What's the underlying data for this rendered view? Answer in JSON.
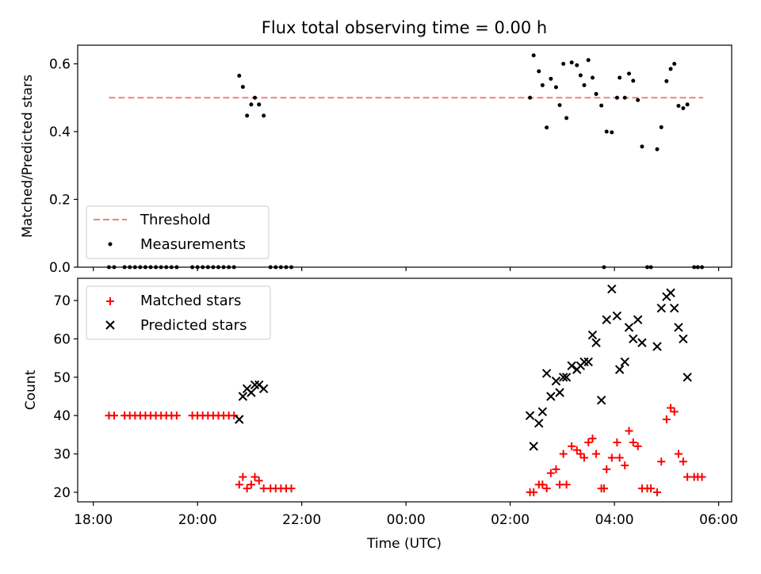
{
  "title": "Flux total observing time = 0.00 h",
  "xlabel": "Time (UTC)",
  "xticks": [
    {
      "hour": 18,
      "label": "18:00"
    },
    {
      "hour": 20,
      "label": "20:00"
    },
    {
      "hour": 22,
      "label": "22:00"
    },
    {
      "hour": 24,
      "label": "00:00"
    },
    {
      "hour": 26,
      "label": "02:00"
    },
    {
      "hour": 28,
      "label": "04:00"
    },
    {
      "hour": 30,
      "label": "06:00"
    }
  ],
  "colors": {
    "threshold": "#f08080",
    "measurements": "#000000",
    "matched": "#ff0000",
    "predicted": "#000000"
  },
  "chart_data": [
    {
      "type": "scatter",
      "ylabel": "Matched/Predicted stars",
      "xlim": [
        17.7,
        30.25
      ],
      "ylim": [
        0,
        0.655
      ],
      "yticks": [
        {
          "value": 0.0,
          "label": "0.0"
        },
        {
          "value": 0.2,
          "label": "0.2"
        },
        {
          "value": 0.4,
          "label": "0.4"
        },
        {
          "value": 0.6,
          "label": "0.6"
        }
      ],
      "legend": {
        "placement": "lower-left",
        "threshold_label": "Threshold",
        "measurements_label": "Measurements"
      },
      "threshold": {
        "value": 0.5,
        "x": [
          18.3,
          29.7
        ]
      },
      "measurements": [
        [
          18.3,
          0
        ],
        [
          18.4,
          0
        ],
        [
          18.6,
          0
        ],
        [
          18.7,
          0
        ],
        [
          18.8,
          0
        ],
        [
          18.9,
          0
        ],
        [
          19.0,
          0
        ],
        [
          19.1,
          0
        ],
        [
          19.2,
          0
        ],
        [
          19.3,
          0
        ],
        [
          19.4,
          0
        ],
        [
          19.5,
          0
        ],
        [
          19.6,
          0
        ],
        [
          19.9,
          0
        ],
        [
          20.0,
          0
        ],
        [
          20.1,
          0
        ],
        [
          20.2,
          0
        ],
        [
          20.3,
          0
        ],
        [
          20.4,
          0
        ],
        [
          20.5,
          0
        ],
        [
          20.6,
          0
        ],
        [
          20.7,
          0
        ],
        [
          20.8,
          0.565
        ],
        [
          20.87,
          0.532
        ],
        [
          20.95,
          0.447
        ],
        [
          21.03,
          0.48
        ],
        [
          21.1,
          0.5
        ],
        [
          21.18,
          0.48
        ],
        [
          21.27,
          0.447
        ],
        [
          21.4,
          0
        ],
        [
          21.5,
          0
        ],
        [
          21.6,
          0
        ],
        [
          21.7,
          0
        ],
        [
          21.8,
          0
        ],
        [
          26.38,
          0.5
        ],
        [
          26.45,
          0.625
        ],
        [
          26.55,
          0.578
        ],
        [
          26.62,
          0.537
        ],
        [
          26.7,
          0.412
        ],
        [
          26.78,
          0.556
        ],
        [
          26.88,
          0.531
        ],
        [
          26.95,
          0.478
        ],
        [
          27.02,
          0.6
        ],
        [
          27.08,
          0.44
        ],
        [
          27.18,
          0.604
        ],
        [
          27.28,
          0.596
        ],
        [
          27.35,
          0.566
        ],
        [
          27.42,
          0.537
        ],
        [
          27.5,
          0.611
        ],
        [
          27.58,
          0.559
        ],
        [
          27.65,
          0.511
        ],
        [
          27.75,
          0.477
        ],
        [
          27.8,
          0
        ],
        [
          27.85,
          0.4
        ],
        [
          27.95,
          0.398
        ],
        [
          28.05,
          0.5
        ],
        [
          28.1,
          0.559
        ],
        [
          28.2,
          0.5
        ],
        [
          28.28,
          0.571
        ],
        [
          28.36,
          0.55
        ],
        [
          28.45,
          0.493
        ],
        [
          28.53,
          0.356
        ],
        [
          28.63,
          0
        ],
        [
          28.7,
          0
        ],
        [
          28.82,
          0.348
        ],
        [
          28.9,
          0.413
        ],
        [
          29.0,
          0.549
        ],
        [
          29.08,
          0.585
        ],
        [
          29.15,
          0.6
        ],
        [
          29.23,
          0.476
        ],
        [
          29.32,
          0.469
        ],
        [
          29.4,
          0.48
        ],
        [
          29.53,
          0
        ],
        [
          29.6,
          0
        ],
        [
          29.68,
          0
        ]
      ]
    },
    {
      "type": "scatter",
      "ylabel": "Count",
      "xlim": [
        17.7,
        30.25
      ],
      "ylim": [
        17.5,
        75.8
      ],
      "yticks": [
        {
          "value": 20,
          "label": "20"
        },
        {
          "value": 30,
          "label": "30"
        },
        {
          "value": 40,
          "label": "40"
        },
        {
          "value": 50,
          "label": "50"
        },
        {
          "value": 60,
          "label": "60"
        },
        {
          "value": 70,
          "label": "70"
        }
      ],
      "legend": {
        "placement": "upper-left",
        "matched_label": "Matched stars",
        "predicted_label": "Predicted stars"
      },
      "series": [
        {
          "name": "Matched stars",
          "marker": "+",
          "points": [
            [
              18.3,
              40
            ],
            [
              18.4,
              40
            ],
            [
              18.6,
              40
            ],
            [
              18.7,
              40
            ],
            [
              18.8,
              40
            ],
            [
              18.9,
              40
            ],
            [
              19.0,
              40
            ],
            [
              19.1,
              40
            ],
            [
              19.2,
              40
            ],
            [
              19.3,
              40
            ],
            [
              19.4,
              40
            ],
            [
              19.5,
              40
            ],
            [
              19.6,
              40
            ],
            [
              19.9,
              40
            ],
            [
              20.0,
              40
            ],
            [
              20.1,
              40
            ],
            [
              20.2,
              40
            ],
            [
              20.3,
              40
            ],
            [
              20.4,
              40
            ],
            [
              20.5,
              40
            ],
            [
              20.6,
              40
            ],
            [
              20.7,
              40
            ],
            [
              20.8,
              22
            ],
            [
              20.87,
              24
            ],
            [
              20.95,
              21
            ],
            [
              21.03,
              22
            ],
            [
              21.1,
              24
            ],
            [
              21.18,
              23
            ],
            [
              21.27,
              21
            ],
            [
              21.4,
              21
            ],
            [
              21.5,
              21
            ],
            [
              21.6,
              21
            ],
            [
              21.7,
              21
            ],
            [
              21.8,
              21
            ],
            [
              26.38,
              20
            ],
            [
              26.45,
              20
            ],
            [
              26.55,
              22
            ],
            [
              26.62,
              22
            ],
            [
              26.7,
              21
            ],
            [
              26.78,
              25
            ],
            [
              26.88,
              26
            ],
            [
              26.95,
              22
            ],
            [
              27.02,
              30
            ],
            [
              27.08,
              22
            ],
            [
              27.18,
              32
            ],
            [
              27.28,
              31
            ],
            [
              27.35,
              30
            ],
            [
              27.42,
              29
            ],
            [
              27.5,
              33
            ],
            [
              27.58,
              34
            ],
            [
              27.65,
              30
            ],
            [
              27.75,
              21
            ],
            [
              27.8,
              21
            ],
            [
              27.85,
              26
            ],
            [
              27.95,
              29
            ],
            [
              28.05,
              33
            ],
            [
              28.1,
              29
            ],
            [
              28.2,
              27
            ],
            [
              28.28,
              36
            ],
            [
              28.36,
              33
            ],
            [
              28.45,
              32
            ],
            [
              28.53,
              21
            ],
            [
              28.63,
              21
            ],
            [
              28.7,
              21
            ],
            [
              28.82,
              20
            ],
            [
              28.9,
              28
            ],
            [
              29.0,
              39
            ],
            [
              29.08,
              42
            ],
            [
              29.15,
              41
            ],
            [
              29.23,
              30
            ],
            [
              29.32,
              28
            ],
            [
              29.4,
              24
            ],
            [
              29.53,
              24
            ],
            [
              29.6,
              24
            ],
            [
              29.68,
              24
            ]
          ]
        },
        {
          "name": "Predicted stars",
          "marker": "x",
          "points": [
            [
              20.8,
              39
            ],
            [
              20.87,
              45
            ],
            [
              20.95,
              47
            ],
            [
              21.03,
              46
            ],
            [
              21.1,
              48
            ],
            [
              21.18,
              48
            ],
            [
              21.27,
              47
            ],
            [
              26.38,
              40
            ],
            [
              26.45,
              32
            ],
            [
              26.55,
              38
            ],
            [
              26.62,
              41
            ],
            [
              26.7,
              51
            ],
            [
              26.78,
              45
            ],
            [
              26.88,
              49
            ],
            [
              26.95,
              46
            ],
            [
              27.02,
              50
            ],
            [
              27.08,
              50
            ],
            [
              27.18,
              53
            ],
            [
              27.28,
              52
            ],
            [
              27.35,
              53
            ],
            [
              27.42,
              54
            ],
            [
              27.5,
              54
            ],
            [
              27.58,
              61
            ],
            [
              27.65,
              59
            ],
            [
              27.75,
              44
            ],
            [
              27.85,
              65
            ],
            [
              27.95,
              73
            ],
            [
              28.05,
              66
            ],
            [
              28.1,
              52
            ],
            [
              28.2,
              54
            ],
            [
              28.28,
              63
            ],
            [
              28.36,
              60
            ],
            [
              28.45,
              65
            ],
            [
              28.53,
              59
            ],
            [
              28.82,
              58
            ],
            [
              28.9,
              68
            ],
            [
              29.0,
              71
            ],
            [
              29.08,
              72
            ],
            [
              29.15,
              68
            ],
            [
              29.23,
              63
            ],
            [
              29.32,
              60
            ],
            [
              29.4,
              50
            ]
          ]
        }
      ]
    }
  ]
}
